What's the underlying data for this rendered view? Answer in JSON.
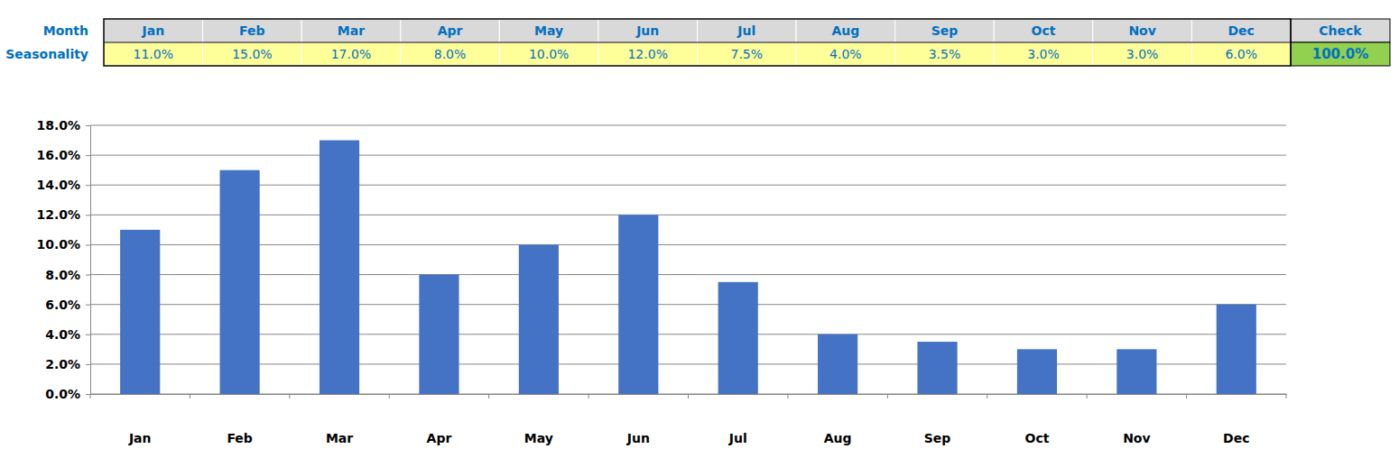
{
  "table": {
    "rows": [
      [
        "Month",
        "Jan",
        "Feb",
        "Mar",
        "Apr",
        "May",
        "Jun",
        "Jul",
        "Aug",
        "Sep",
        "Oct",
        "Nov",
        "Dec",
        "Check"
      ],
      [
        "Seasonality",
        "11.0%",
        "15.0%",
        "17.0%",
        "8.0%",
        "10.0%",
        "12.0%",
        "7.5%",
        "4.0%",
        "3.5%",
        "3.0%",
        "3.0%",
        "6.0%",
        "100.0%"
      ]
    ]
  },
  "chart_data": {
    "type": "bar",
    "categories": [
      "Jan",
      "Feb",
      "Mar",
      "Apr",
      "May",
      "Jun",
      "Jul",
      "Aug",
      "Sep",
      "Oct",
      "Nov",
      "Dec"
    ],
    "values": [
      11,
      15,
      17,
      8,
      10,
      12,
      7.5,
      4,
      3.5,
      3,
      3,
      6
    ],
    "color": "#4472c4",
    "ylim": [
      0,
      18
    ],
    "yticks": [
      {
        "value": 0,
        "label": "0.0%"
      },
      {
        "value": 2,
        "label": "2.0%"
      },
      {
        "value": 4,
        "label": "4.0%"
      },
      {
        "value": 6,
        "label": "6.0%"
      },
      {
        "value": 8,
        "label": "8.0%"
      },
      {
        "value": 10,
        "label": "10.0%"
      },
      {
        "value": 12,
        "label": "12.0%"
      },
      {
        "value": 14,
        "label": "14.0%"
      },
      {
        "value": 16,
        "label": "16.0%"
      },
      {
        "value": 18,
        "label": "18.0%"
      }
    ],
    "grid": true
  }
}
